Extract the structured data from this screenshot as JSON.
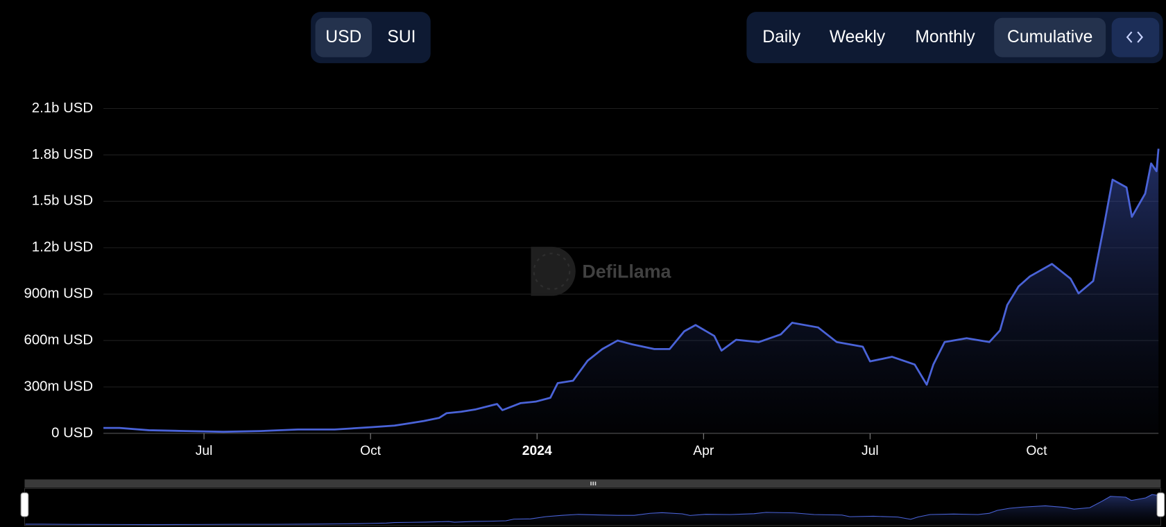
{
  "currency_toggle": {
    "options": [
      "USD",
      "SUI"
    ],
    "selected": 0
  },
  "period_toggle": {
    "options": [
      "Daily",
      "Weekly",
      "Monthly",
      "Cumulative"
    ],
    "selected": 3
  },
  "watermark": "DefiLlama",
  "chart_data": {
    "type": "area",
    "x": [
      2023.349,
      2023.373,
      2023.417,
      2023.473,
      2023.529,
      2023.585,
      2023.641,
      2023.696,
      2023.752,
      2023.786,
      2023.808,
      2023.83,
      2023.853,
      2023.864,
      2023.886,
      2023.908,
      2023.931,
      2023.94,
      2023.948,
      2023.975,
      2023.998,
      2024.02,
      2024.031,
      2024.054,
      2024.076,
      2024.098,
      2024.121,
      2024.143,
      2024.176,
      2024.199,
      2024.221,
      2024.238,
      2024.266,
      2024.277,
      2024.299,
      2024.333,
      2024.366,
      2024.383,
      2024.422,
      2024.45,
      2024.489,
      2024.5,
      2024.533,
      2024.567,
      2024.585,
      2024.595,
      2024.612,
      2024.645,
      2024.679,
      2024.695,
      2024.706,
      2024.723,
      2024.74,
      2024.773,
      2024.801,
      2024.813,
      2024.835,
      2024.852,
      2024.864,
      2024.885,
      2024.893,
      2024.913,
      2024.922,
      2024.93,
      2024.933
    ],
    "series": [
      {
        "name": "Cumulative",
        "color": "#4a63d8",
        "values": [
          35000000,
          35000000,
          20000000,
          15000000,
          10000000,
          15000000,
          25000000,
          25000000,
          40000000,
          50000000,
          65000000,
          80000000,
          100000000,
          130000000,
          140000000,
          155000000,
          180000000,
          190000000,
          150000000,
          195000000,
          205000000,
          230000000,
          325000000,
          340000000,
          470000000,
          545000000,
          600000000,
          575000000,
          545000000,
          545000000,
          660000000,
          700000000,
          630000000,
          535000000,
          605000000,
          590000000,
          640000000,
          715000000,
          685000000,
          590000000,
          560000000,
          465000000,
          495000000,
          445000000,
          315000000,
          445000000,
          590000000,
          615000000,
          590000000,
          665000000,
          830000000,
          950000000,
          1015000000,
          1095000000,
          1000000000,
          905000000,
          985000000,
          1360000000,
          1640000000,
          1590000000,
          1400000000,
          1550000000,
          1745000000,
          1695000000,
          1840000000
        ]
      }
    ],
    "xlim": [
      2023.349,
      2024.933
    ],
    "xticks": [
      {
        "value": 2023.5,
        "label": "Jul"
      },
      {
        "value": 2023.75,
        "label": "Oct"
      },
      2024,
      {
        "value": 2024.25,
        "label": "Apr"
      },
      {
        "value": 2024.5,
        "label": "Jul"
      },
      {
        "value": 2024.75,
        "label": "Oct"
      }
    ],
    "ylim": [
      0,
      2100000000
    ],
    "yticks": [
      {
        "value": 0,
        "label": "0 USD"
      },
      {
        "value": 300000000,
        "label": "300m USD"
      },
      {
        "value": 600000000,
        "label": "600m USD"
      },
      {
        "value": 900000000,
        "label": "900m USD"
      },
      {
        "value": 1200000000,
        "label": "1.2b USD"
      },
      {
        "value": 1500000000,
        "label": "1.5b USD"
      },
      {
        "value": 1800000000,
        "label": "1.8b USD"
      },
      {
        "value": 2100000000,
        "label": "2.1b USD"
      }
    ],
    "grid": true
  }
}
